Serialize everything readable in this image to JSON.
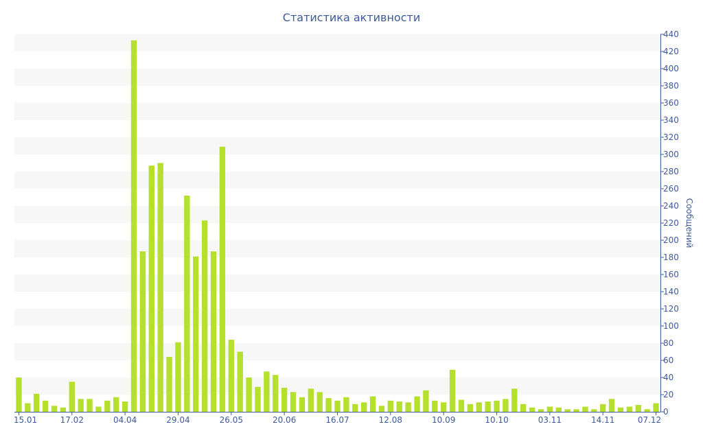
{
  "chart_data": {
    "type": "bar",
    "title": "Статистика активности",
    "ylabel": "Сообщений",
    "xlabel": "",
    "ylim": [
      0,
      440
    ],
    "y_ticks": [
      0,
      20,
      40,
      60,
      80,
      100,
      120,
      140,
      160,
      180,
      200,
      220,
      240,
      260,
      280,
      300,
      320,
      340,
      360,
      380,
      400,
      420,
      440
    ],
    "x_tick_labels": [
      {
        "label": "15.01",
        "index": 0
      },
      {
        "label": "17.02",
        "index": 6
      },
      {
        "label": "04.04",
        "index": 12
      },
      {
        "label": "29.04",
        "index": 18
      },
      {
        "label": "26.05",
        "index": 24
      },
      {
        "label": "20.06",
        "index": 30
      },
      {
        "label": "16.07",
        "index": 36
      },
      {
        "label": "12.08",
        "index": 42
      },
      {
        "label": "10.09",
        "index": 48
      },
      {
        "label": "10.10",
        "index": 54
      },
      {
        "label": "03.11",
        "index": 60
      },
      {
        "label": "14.11",
        "index": 66
      },
      {
        "label": "07.12",
        "index": 72
      }
    ],
    "values": [
      40,
      10,
      21,
      13,
      7,
      5,
      35,
      15,
      15,
      6,
      13,
      17,
      12,
      433,
      187,
      287,
      290,
      64,
      81,
      252,
      181,
      223,
      187,
      309,
      84,
      70,
      40,
      29,
      47,
      43,
      28,
      23,
      17,
      27,
      23,
      16,
      13,
      17,
      9,
      11,
      18,
      7,
      13,
      12,
      11,
      18,
      25,
      13,
      11,
      49,
      14,
      9,
      11,
      12,
      13,
      15,
      27,
      9,
      5,
      3,
      6,
      5,
      3,
      3,
      6,
      3,
      9,
      15,
      5,
      6,
      8,
      3,
      10
    ],
    "grid": "horizontal bands",
    "legend": "none",
    "bar_color": "#b5e02e",
    "axis_color": "#3d5a99",
    "band_color": "#f7f7f7"
  }
}
